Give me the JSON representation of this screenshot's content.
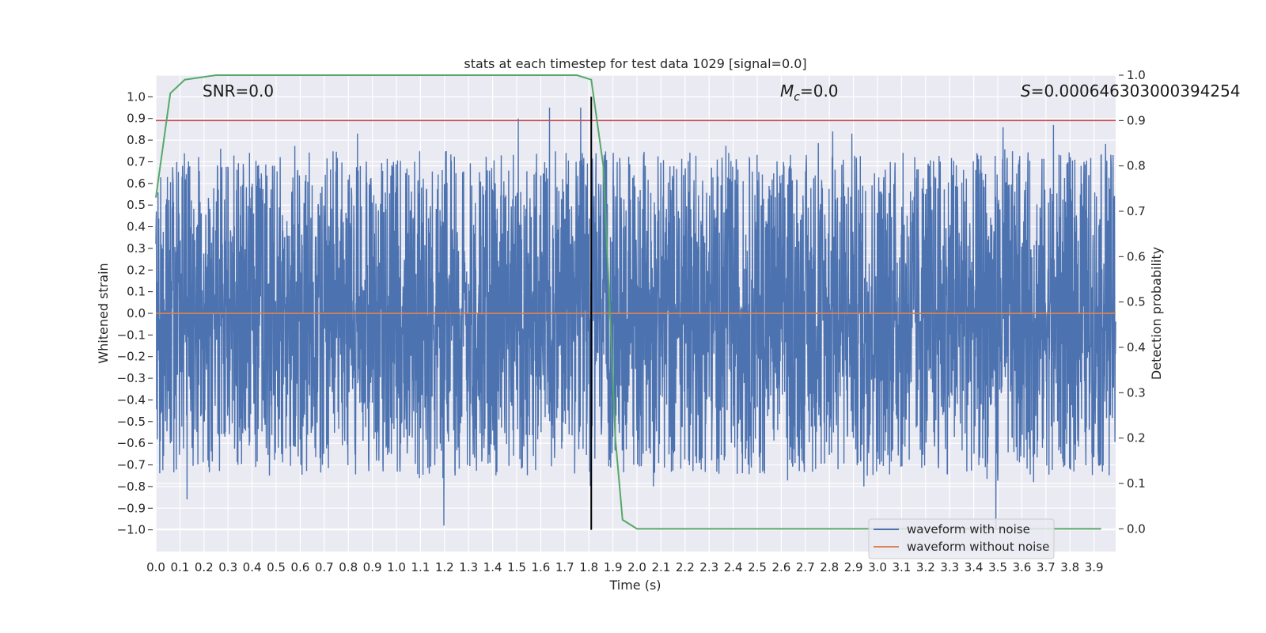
{
  "chart_data": {
    "type": "line",
    "title": "stats at each timestep for test data 1029 [signal=0.0]",
    "xlabel": "Time (s)",
    "ylabel": "Whitened strain",
    "y2label": "Detection probability",
    "xlim": [
      0.0,
      3.99
    ],
    "ylim": [
      -1.1,
      1.1
    ],
    "y2lim": [
      -0.05,
      1.0
    ],
    "x_ticks": [
      "0.0",
      "0.1",
      "0.2",
      "0.3",
      "0.4",
      "0.5",
      "0.6",
      "0.7",
      "0.8",
      "0.9",
      "1.0",
      "1.1",
      "1.2",
      "1.3",
      "1.4",
      "1.5",
      "1.6",
      "1.7",
      "1.8",
      "1.9",
      "2.0",
      "2.1",
      "2.2",
      "2.3",
      "2.4",
      "2.5",
      "2.6",
      "2.7",
      "2.8",
      "2.9",
      "3.0",
      "3.1",
      "3.2",
      "3.3",
      "3.4",
      "3.5",
      "3.6",
      "3.7",
      "3.8",
      "3.9"
    ],
    "y_ticks": [
      "1.0",
      "0.9",
      "0.8",
      "0.7",
      "0.6",
      "0.5",
      "0.4",
      "0.3",
      "0.2",
      "0.1",
      "0.0",
      "−0.1",
      "−0.2",
      "−0.3",
      "−0.4",
      "−0.5",
      "−0.6",
      "−0.7",
      "−0.8",
      "−0.9",
      "−1.0"
    ],
    "y2_ticks": [
      "1.0",
      "0.9",
      "0.8",
      "0.7",
      "0.6",
      "0.5",
      "0.4",
      "0.3",
      "0.2",
      "0.1",
      "0.0"
    ],
    "annotations": {
      "snr": "SNR=0.0",
      "mc_prefix": "M",
      "mc_sub": "c",
      "mc_value": "=0.0",
      "s_prefix": "S",
      "s_value": "=0.000646303000394254"
    },
    "threshold": 0.9,
    "marker_time": 1.81,
    "series": [
      {
        "name": "waveform with noise",
        "color": "#4c72b0",
        "generated": "approximately uniform whitened noise in [-1, 1], ~4000 samples over 0 to 3.99 s; notable peaks: 0.95 at 1.64 s, 0.95 at 1.77 s, 0.83 at 0.84 s, -0.98 at 1.20 s, -1.0 at 3.50 s"
      },
      {
        "name": "waveform without noise",
        "color": "#dd8452",
        "x": [
          0.0,
          3.99
        ],
        "y": [
          0.0,
          0.0
        ]
      },
      {
        "name": "detection probability",
        "color": "#55a868",
        "axis": "right",
        "x": [
          0.0,
          0.06,
          0.12,
          0.25,
          0.5,
          1.0,
          1.5,
          1.75,
          1.81,
          1.86,
          1.89,
          1.91,
          1.94,
          2.0,
          2.1,
          2.5,
          3.0,
          3.5,
          3.93
        ],
        "y": [
          0.73,
          0.96,
          0.99,
          1.0,
          1.0,
          1.0,
          1.0,
          1.0,
          0.99,
          0.8,
          0.45,
          0.2,
          0.02,
          0.0,
          0.0,
          0.0,
          0.0,
          0.0,
          0.0
        ]
      }
    ],
    "legend": {
      "position": "lower-right",
      "entries": [
        {
          "label": "waveform with noise",
          "color": "#4c72b0"
        },
        {
          "label": "waveform without noise",
          "color": "#dd8452"
        }
      ]
    },
    "colors": {
      "plot_background": "#eaeaf2",
      "grid": "#ffffff",
      "threshold_line": "#c44e52",
      "marker_line": "#000000"
    }
  }
}
